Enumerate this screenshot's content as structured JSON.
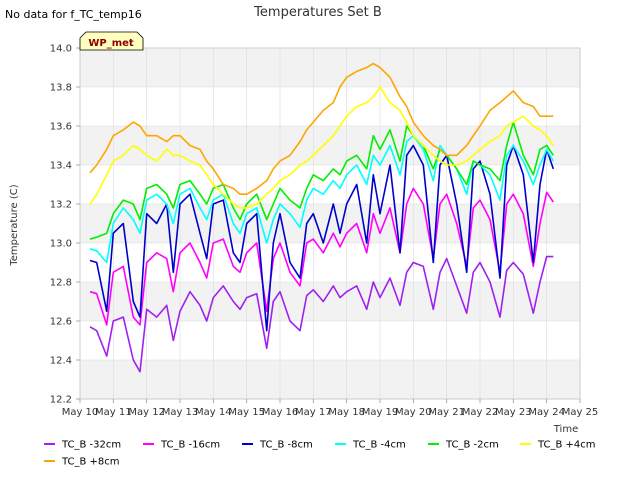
{
  "header": {
    "no_data_note": "No data for f_TC_temp16",
    "site_tag": "WP_met"
  },
  "colors": {
    "band": "#f2f2f2",
    "grid": "#dcdcdc",
    "axis": "#cccccc",
    "tag_fill": "#ffffc0",
    "tag_text": "#8b0000"
  },
  "chart_data": {
    "type": "line",
    "title": "Temperatures Set B",
    "xlabel": "Time",
    "ylabel": "Temperature (C)",
    "xlim": [
      10,
      25
    ],
    "ylim": [
      12.2,
      14.0
    ],
    "grid": true,
    "y_ticks": [
      "12.2",
      "12.4",
      "12.6",
      "12.8",
      "13.0",
      "13.2",
      "13.4",
      "13.6",
      "13.8",
      "14.0"
    ],
    "x_ticks": [
      "May 10",
      "May 11",
      "May 12",
      "May 13",
      "May 14",
      "May 15",
      "May 16",
      "May 17",
      "May 18",
      "May 19",
      "May 20",
      "May 21",
      "May 22",
      "May 23",
      "May 24",
      "May 25"
    ],
    "series": [
      {
        "name": "TC_B -32cm",
        "color": "#a020f0",
        "x": [
          10.3,
          10.5,
          10.8,
          11.0,
          11.3,
          11.6,
          11.8,
          12.0,
          12.3,
          12.6,
          12.8,
          13.0,
          13.3,
          13.6,
          13.8,
          14.0,
          14.3,
          14.6,
          14.8,
          15.0,
          15.3,
          15.6,
          15.8,
          16.0,
          16.3,
          16.6,
          16.8,
          17.0,
          17.3,
          17.6,
          17.8,
          18.0,
          18.3,
          18.6,
          18.8,
          19.0,
          19.3,
          19.6,
          19.8,
          20.0,
          20.3,
          20.6,
          20.8,
          21.0,
          21.3,
          21.6,
          21.8,
          22.0,
          22.3,
          22.6,
          22.8,
          23.0,
          23.3,
          23.6,
          23.8,
          24.0,
          24.2
        ],
        "values": [
          12.57,
          12.55,
          12.42,
          12.6,
          12.62,
          12.4,
          12.34,
          12.66,
          12.62,
          12.68,
          12.5,
          12.65,
          12.75,
          12.68,
          12.6,
          12.72,
          12.78,
          12.7,
          12.66,
          12.72,
          12.74,
          12.46,
          12.7,
          12.75,
          12.6,
          12.55,
          12.73,
          12.76,
          12.7,
          12.78,
          12.72,
          12.75,
          12.78,
          12.66,
          12.8,
          12.72,
          12.82,
          12.68,
          12.85,
          12.9,
          12.88,
          12.66,
          12.85,
          12.92,
          12.78,
          12.64,
          12.85,
          12.9,
          12.8,
          12.62,
          12.86,
          12.9,
          12.84,
          12.64,
          12.8,
          12.93,
          12.93
        ]
      },
      {
        "name": "TC_B -16cm",
        "color": "#ff00ff",
        "x": [
          10.3,
          10.5,
          10.8,
          11.0,
          11.3,
          11.6,
          11.8,
          12.0,
          12.3,
          12.6,
          12.8,
          13.0,
          13.3,
          13.6,
          13.8,
          14.0,
          14.3,
          14.6,
          14.8,
          15.0,
          15.3,
          15.6,
          15.8,
          16.0,
          16.3,
          16.6,
          16.8,
          17.0,
          17.3,
          17.6,
          17.8,
          18.0,
          18.3,
          18.6,
          18.8,
          19.0,
          19.3,
          19.6,
          19.8,
          20.0,
          20.3,
          20.6,
          20.8,
          21.0,
          21.3,
          21.6,
          21.8,
          22.0,
          22.3,
          22.6,
          22.8,
          23.0,
          23.3,
          23.6,
          23.8,
          24.0,
          24.2
        ],
        "values": [
          12.75,
          12.74,
          12.58,
          12.85,
          12.88,
          12.62,
          12.58,
          12.9,
          12.95,
          12.92,
          12.75,
          12.95,
          13.0,
          12.9,
          12.82,
          13.0,
          13.02,
          12.88,
          12.85,
          12.95,
          13.0,
          12.65,
          12.92,
          13.0,
          12.85,
          12.78,
          13.0,
          13.02,
          12.95,
          13.05,
          12.98,
          13.05,
          13.1,
          12.95,
          13.15,
          13.05,
          13.18,
          12.95,
          13.2,
          13.28,
          13.2,
          12.92,
          13.2,
          13.25,
          13.1,
          12.88,
          13.18,
          13.22,
          13.12,
          12.85,
          13.2,
          13.25,
          13.15,
          12.88,
          13.1,
          13.26,
          13.21
        ]
      },
      {
        "name": "TC_B -8cm",
        "color": "#0000cd",
        "x": [
          10.3,
          10.5,
          10.8,
          11.0,
          11.3,
          11.6,
          11.8,
          12.0,
          12.3,
          12.6,
          12.8,
          13.0,
          13.3,
          13.6,
          13.8,
          14.0,
          14.3,
          14.6,
          14.8,
          15.0,
          15.3,
          15.6,
          15.8,
          16.0,
          16.3,
          16.6,
          16.8,
          17.0,
          17.3,
          17.6,
          17.8,
          18.0,
          18.3,
          18.6,
          18.8,
          19.0,
          19.3,
          19.6,
          19.8,
          20.0,
          20.3,
          20.6,
          20.8,
          21.0,
          21.3,
          21.6,
          21.8,
          22.0,
          22.3,
          22.6,
          22.8,
          23.0,
          23.3,
          23.6,
          23.8,
          24.0,
          24.2
        ],
        "values": [
          12.91,
          12.9,
          12.65,
          13.05,
          13.1,
          12.7,
          12.62,
          13.15,
          13.1,
          13.2,
          12.85,
          13.2,
          13.25,
          13.05,
          12.92,
          13.2,
          13.22,
          12.95,
          12.9,
          13.1,
          13.15,
          12.55,
          13.0,
          13.15,
          12.9,
          12.82,
          13.1,
          13.15,
          13.0,
          13.2,
          13.05,
          13.2,
          13.3,
          13.0,
          13.35,
          13.15,
          13.4,
          12.95,
          13.45,
          13.5,
          13.4,
          12.9,
          13.4,
          13.45,
          13.2,
          12.85,
          13.38,
          13.42,
          13.25,
          12.82,
          13.4,
          13.5,
          13.35,
          12.9,
          13.3,
          13.48,
          13.38
        ]
      },
      {
        "name": "TC_B -4cm",
        "color": "#00ffff",
        "x": [
          10.3,
          10.5,
          10.8,
          11.0,
          11.3,
          11.6,
          11.8,
          12.0,
          12.3,
          12.6,
          12.8,
          13.0,
          13.3,
          13.6,
          13.8,
          14.0,
          14.3,
          14.6,
          14.8,
          15.0,
          15.3,
          15.6,
          15.8,
          16.0,
          16.3,
          16.6,
          16.8,
          17.0,
          17.3,
          17.6,
          17.8,
          18.0,
          18.3,
          18.6,
          18.8,
          19.0,
          19.3,
          19.6,
          19.8,
          20.0,
          20.3,
          20.6,
          20.8,
          21.0,
          21.3,
          21.6,
          21.8,
          22.0,
          22.3,
          22.6,
          22.8,
          23.0,
          23.3,
          23.6,
          23.8,
          24.0,
          24.2
        ],
        "values": [
          12.97,
          12.96,
          12.9,
          13.1,
          13.18,
          13.12,
          13.05,
          13.22,
          13.25,
          13.2,
          13.1,
          13.25,
          13.28,
          13.18,
          13.12,
          13.22,
          13.25,
          13.1,
          13.05,
          13.15,
          13.18,
          13.0,
          13.12,
          13.2,
          13.15,
          13.08,
          13.22,
          13.28,
          13.25,
          13.32,
          13.28,
          13.35,
          13.4,
          13.3,
          13.45,
          13.4,
          13.5,
          13.35,
          13.52,
          13.55,
          13.48,
          13.32,
          13.5,
          13.45,
          13.38,
          13.25,
          13.42,
          13.4,
          13.35,
          13.22,
          13.45,
          13.5,
          13.42,
          13.3,
          13.4,
          13.48,
          13.42
        ]
      },
      {
        "name": "TC_B -2cm",
        "color": "#00ee00",
        "x": [
          10.3,
          10.5,
          10.8,
          11.0,
          11.3,
          11.6,
          11.8,
          12.0,
          12.3,
          12.6,
          12.8,
          13.0,
          13.3,
          13.6,
          13.8,
          14.0,
          14.3,
          14.6,
          14.8,
          15.0,
          15.3,
          15.6,
          15.8,
          16.0,
          16.3,
          16.6,
          16.8,
          17.0,
          17.3,
          17.6,
          17.8,
          18.0,
          18.3,
          18.6,
          18.8,
          19.0,
          19.3,
          19.6,
          19.8,
          20.0,
          20.3,
          20.6,
          20.8,
          21.0,
          21.3,
          21.6,
          21.8,
          22.0,
          22.3,
          22.6,
          22.8,
          23.0,
          23.3,
          23.6,
          23.8,
          24.0,
          24.2
        ],
        "values": [
          13.02,
          13.03,
          13.05,
          13.15,
          13.22,
          13.2,
          13.12,
          13.28,
          13.3,
          13.25,
          13.18,
          13.3,
          13.32,
          13.25,
          13.2,
          13.28,
          13.3,
          13.18,
          13.12,
          13.2,
          13.25,
          13.12,
          13.2,
          13.28,
          13.22,
          13.18,
          13.28,
          13.35,
          13.32,
          13.38,
          13.35,
          13.42,
          13.45,
          13.38,
          13.55,
          13.48,
          13.58,
          13.42,
          13.6,
          13.55,
          13.5,
          13.38,
          13.48,
          13.45,
          13.38,
          13.3,
          13.42,
          13.4,
          13.38,
          13.32,
          13.5,
          13.62,
          13.45,
          13.35,
          13.48,
          13.5,
          13.45
        ]
      },
      {
        "name": "TC_B +4cm",
        "color": "#ffff00",
        "x": [
          10.3,
          10.5,
          10.8,
          11.0,
          11.3,
          11.6,
          11.8,
          12.0,
          12.3,
          12.6,
          12.8,
          13.0,
          13.3,
          13.6,
          13.8,
          14.0,
          14.3,
          14.6,
          14.8,
          15.0,
          15.3,
          15.6,
          15.8,
          16.0,
          16.3,
          16.6,
          16.8,
          17.0,
          17.3,
          17.6,
          17.8,
          18.0,
          18.3,
          18.6,
          18.8,
          19.0,
          19.3,
          19.6,
          19.8,
          20.0,
          20.3,
          20.6,
          20.8,
          21.0,
          21.3,
          21.6,
          21.8,
          22.0,
          22.3,
          22.6,
          22.8,
          23.0,
          23.3,
          23.6,
          23.8,
          24.0,
          24.2
        ],
        "values": [
          13.2,
          13.25,
          13.35,
          13.42,
          13.45,
          13.5,
          13.48,
          13.45,
          13.42,
          13.48,
          13.45,
          13.45,
          13.42,
          13.4,
          13.35,
          13.3,
          13.25,
          13.2,
          13.18,
          13.18,
          13.2,
          13.25,
          13.28,
          13.32,
          13.35,
          13.4,
          13.42,
          13.45,
          13.5,
          13.55,
          13.6,
          13.65,
          13.7,
          13.72,
          13.75,
          13.8,
          13.72,
          13.68,
          13.62,
          13.55,
          13.5,
          13.45,
          13.42,
          13.4,
          13.4,
          13.42,
          13.45,
          13.48,
          13.52,
          13.55,
          13.6,
          13.62,
          13.65,
          13.6,
          13.58,
          13.55,
          13.5
        ]
      },
      {
        "name": "TC_B +8cm",
        "color": "#ffa500",
        "x": [
          10.3,
          10.5,
          10.8,
          11.0,
          11.3,
          11.6,
          11.8,
          12.0,
          12.3,
          12.6,
          12.8,
          13.0,
          13.3,
          13.6,
          13.8,
          14.0,
          14.3,
          14.6,
          14.8,
          15.0,
          15.3,
          15.6,
          15.8,
          16.0,
          16.3,
          16.6,
          16.8,
          17.0,
          17.3,
          17.6,
          17.8,
          18.0,
          18.3,
          18.6,
          18.8,
          19.0,
          19.3,
          19.6,
          19.8,
          20.0,
          20.3,
          20.6,
          20.8,
          21.0,
          21.3,
          21.6,
          21.8,
          22.0,
          22.3,
          22.6,
          22.8,
          23.0,
          23.3,
          23.6,
          23.8,
          24.0,
          24.2
        ],
        "values": [
          13.36,
          13.4,
          13.48,
          13.55,
          13.58,
          13.62,
          13.6,
          13.55,
          13.55,
          13.52,
          13.55,
          13.55,
          13.5,
          13.48,
          13.42,
          13.38,
          13.3,
          13.28,
          13.25,
          13.25,
          13.28,
          13.32,
          13.38,
          13.42,
          13.45,
          13.52,
          13.58,
          13.62,
          13.68,
          13.72,
          13.8,
          13.85,
          13.88,
          13.9,
          13.92,
          13.9,
          13.85,
          13.75,
          13.7,
          13.62,
          13.55,
          13.5,
          13.48,
          13.45,
          13.45,
          13.5,
          13.55,
          13.6,
          13.68,
          13.72,
          13.75,
          13.78,
          13.72,
          13.7,
          13.65,
          13.65,
          13.65
        ]
      }
    ]
  }
}
